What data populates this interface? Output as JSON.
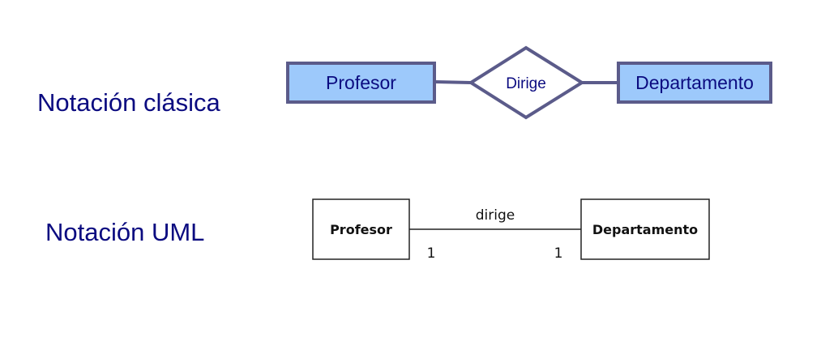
{
  "colors": {
    "label_text": "#0b0b80",
    "entity_fill": "#9dc9fb",
    "entity_border": "#5b5b8a",
    "uml_line": "#222222"
  },
  "classic": {
    "label": "Notación clásica",
    "entity_left": "Profesor",
    "relationship": "Dirige",
    "entity_right": "Departamento"
  },
  "uml": {
    "label": "Notación UML",
    "class_left": "Profesor",
    "association": "dirige",
    "class_right": "Departamento",
    "multiplicity_left": "1",
    "multiplicity_right": "1"
  }
}
